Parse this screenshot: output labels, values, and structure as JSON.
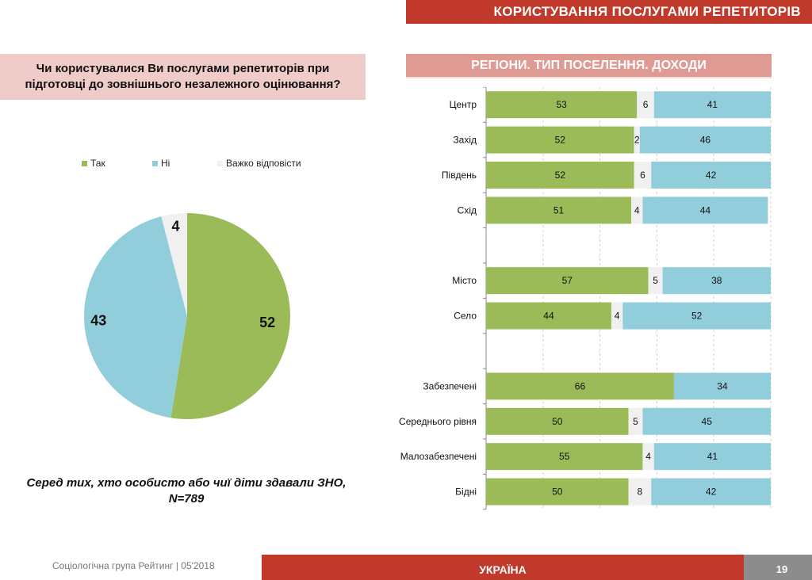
{
  "header": {
    "title": "КОРИСТУВАННЯ ПОСЛУГАМИ РЕПЕТИТОРІВ"
  },
  "colors": {
    "yes": "#9bbb59",
    "no": "#92cddc",
    "hard": "#f0f0f0",
    "brand_red": "#c0392b",
    "section_pink": "#df9a94",
    "question_pink": "#efcbca",
    "page_gray": "#8c8c8c"
  },
  "question": {
    "line1": "Чи користувалися Ви послугами репетиторів при",
    "line2": "підготовці до зовнішнього незалежного оцінювання?"
  },
  "note": {
    "line1": "Серед тих, хто особисто або чиї діти здавали ЗНО,",
    "line2": "N=789"
  },
  "section": {
    "title": "РЕГІОНИ. ТИП ПОСЕЛЕННЯ. ДОХОДИ"
  },
  "footer": {
    "source": "Соціологічна група Рейтинг  |  05'2018",
    "region": "УКРАЇНА",
    "page": "19"
  },
  "chart_data": [
    {
      "type": "pie",
      "title": "Чи користувалися Ви послугами репетиторів при підготовці до зовнішнього незалежного оцінювання?",
      "legend_position": "top",
      "categories": [
        "Так",
        "Ні",
        "Важко відповісти"
      ],
      "values": [
        52,
        43,
        4
      ],
      "value_labels": [
        "52",
        "43",
        "4"
      ]
    },
    {
      "type": "bar",
      "orientation": "horizontal-stacked-100",
      "title": "РЕГІОНИ. ТИП ПОСЕЛЕННЯ. ДОХОДИ",
      "xlim": [
        0,
        100
      ],
      "grid": true,
      "categories": [
        "Центр",
        "Захід",
        "Південь",
        "Схід",
        "",
        "Місто",
        "Село",
        "",
        "Забезпечені",
        "Середнього рівня",
        "Малозабезпечені",
        "Бідні"
      ],
      "series": [
        {
          "name": "Так",
          "values": [
            53,
            52,
            52,
            51,
            null,
            57,
            44,
            null,
            66,
            50,
            55,
            50
          ]
        },
        {
          "name": "Важко відповісти",
          "values": [
            6,
            2,
            6,
            4,
            null,
            5,
            4,
            null,
            0,
            5,
            4,
            8
          ]
        },
        {
          "name": "Ні",
          "values": [
            41,
            46,
            42,
            44,
            null,
            38,
            52,
            null,
            34,
            45,
            41,
            42
          ]
        }
      ]
    }
  ]
}
